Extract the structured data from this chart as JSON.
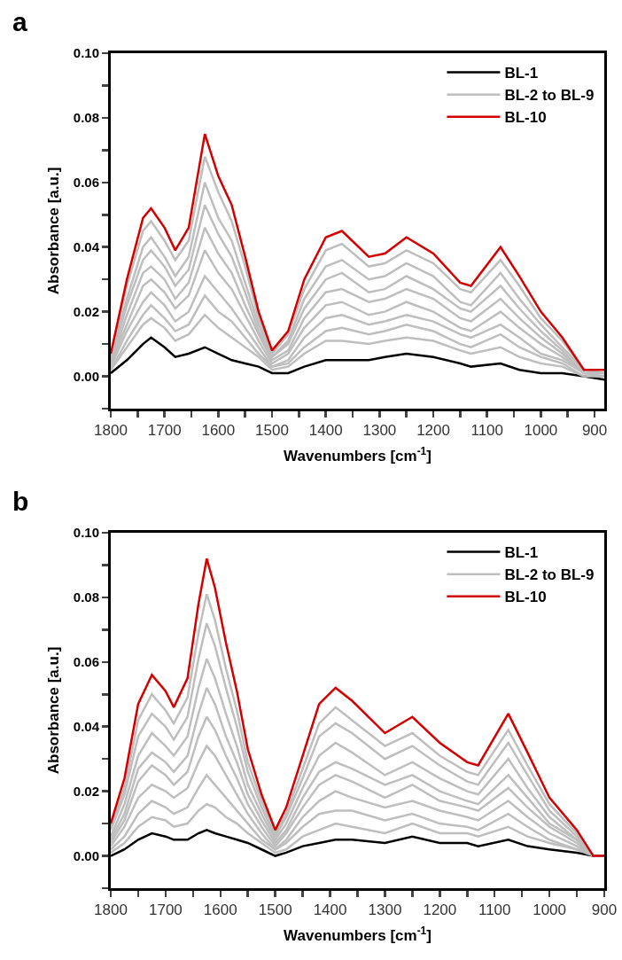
{
  "chart_data": [
    {
      "type": "line",
      "title": "a",
      "xlabel": "Wavenumbers [cm$^{-1}$]",
      "ylabel": "Absorbance [a.u.]",
      "legend": "top right",
      "grid": false,
      "x": [
        1800,
        1770,
        1740,
        1725,
        1700,
        1680,
        1655,
        1625,
        1600,
        1575,
        1550,
        1525,
        1500,
        1470,
        1440,
        1400,
        1370,
        1320,
        1290,
        1250,
        1200,
        1150,
        1130,
        1075,
        1040,
        1000,
        960,
        920,
        882
      ],
      "xlim": [
        1800,
        882
      ],
      "ylim": [
        -0.01,
        0.1
      ],
      "xticks": [
        1800,
        {
          "value": 1750,
          "label": null
        },
        1700,
        {
          "value": 1650,
          "label": null
        },
        1600,
        {
          "value": 1550,
          "label": null
        },
        1500,
        {
          "value": 1450,
          "label": null
        },
        1400,
        {
          "value": 1350,
          "label": null
        },
        1300,
        {
          "value": 1250,
          "label": null
        },
        1200,
        {
          "value": 1150,
          "label": null
        },
        1100,
        {
          "value": 1050,
          "label": null
        },
        1000,
        {
          "value": 950,
          "label": null
        },
        900
      ],
      "yticks": [
        {
          "value": -0.01,
          "label": null
        },
        {
          "value": 0,
          "label": "0.00"
        },
        {
          "value": 0.01,
          "label": null
        },
        {
          "value": 0.02,
          "label": "0.02"
        },
        {
          "value": 0.03,
          "label": null
        },
        {
          "value": 0.04,
          "label": "0.04"
        },
        {
          "value": 0.05,
          "label": null
        },
        {
          "value": 0.06,
          "label": "0.06"
        },
        {
          "value": 0.07,
          "label": null
        },
        {
          "value": 0.08,
          "label": "0.08"
        },
        {
          "value": 0.09,
          "label": null
        },
        {
          "value": 0.1,
          "label": "0.10"
        }
      ],
      "series": [
        {
          "name": "BL-1",
          "color": "#000000",
          "values": [
            0.001,
            0.005,
            0.01,
            0.012,
            0.009,
            0.006,
            0.007,
            0.009,
            0.007,
            0.005,
            0.004,
            0.003,
            0.001,
            0.001,
            0.003,
            0.005,
            0.005,
            0.005,
            0.006,
            0.007,
            0.006,
            0.004,
            0.003,
            0.004,
            0.002,
            0.001,
            0.001,
            0.0,
            -0.001
          ]
        },
        {
          "name": "BL-2 to BL-9",
          "color": "#bebebe",
          "values": [
            0.002,
            0.009,
            0.016,
            0.018,
            0.015,
            0.011,
            0.013,
            0.019,
            0.015,
            0.012,
            0.009,
            0.006,
            0.002,
            0.003,
            0.007,
            0.011,
            0.011,
            0.01,
            0.011,
            0.012,
            0.011,
            0.008,
            0.007,
            0.009,
            0.006,
            0.004,
            0.003,
            0.0,
            0.0
          ]
        },
        {
          "color": "#bebebe",
          "values": [
            0.002,
            0.011,
            0.019,
            0.022,
            0.018,
            0.014,
            0.016,
            0.025,
            0.02,
            0.017,
            0.012,
            0.007,
            0.003,
            0.004,
            0.009,
            0.014,
            0.015,
            0.013,
            0.014,
            0.016,
            0.014,
            0.01,
            0.009,
            0.013,
            0.009,
            0.006,
            0.004,
            0.0,
            0.0
          ]
        },
        {
          "color": "#bebebe",
          "values": [
            0.003,
            0.014,
            0.023,
            0.026,
            0.022,
            0.017,
            0.02,
            0.031,
            0.026,
            0.021,
            0.015,
            0.009,
            0.003,
            0.005,
            0.012,
            0.018,
            0.019,
            0.016,
            0.017,
            0.019,
            0.017,
            0.013,
            0.012,
            0.016,
            0.012,
            0.007,
            0.005,
            0.001,
            0.0
          ]
        },
        {
          "color": "#bebebe",
          "values": [
            0.004,
            0.016,
            0.028,
            0.03,
            0.026,
            0.021,
            0.025,
            0.039,
            0.032,
            0.027,
            0.019,
            0.011,
            0.004,
            0.007,
            0.015,
            0.022,
            0.023,
            0.019,
            0.02,
            0.023,
            0.02,
            0.015,
            0.014,
            0.02,
            0.015,
            0.01,
            0.006,
            0.001,
            0.0
          ]
        },
        {
          "color": "#bebebe",
          "values": [
            0.004,
            0.019,
            0.032,
            0.034,
            0.03,
            0.024,
            0.029,
            0.046,
            0.038,
            0.032,
            0.022,
            0.013,
            0.005,
            0.008,
            0.018,
            0.026,
            0.027,
            0.023,
            0.024,
            0.027,
            0.024,
            0.018,
            0.017,
            0.024,
            0.018,
            0.012,
            0.007,
            0.001,
            0.001
          ]
        },
        {
          "color": "#bebebe",
          "values": [
            0.005,
            0.022,
            0.036,
            0.039,
            0.034,
            0.028,
            0.033,
            0.053,
            0.044,
            0.037,
            0.026,
            0.014,
            0.006,
            0.01,
            0.021,
            0.03,
            0.032,
            0.026,
            0.027,
            0.031,
            0.027,
            0.021,
            0.02,
            0.028,
            0.021,
            0.014,
            0.008,
            0.001,
            0.001
          ]
        },
        {
          "color": "#bebebe",
          "values": [
            0.006,
            0.024,
            0.04,
            0.043,
            0.037,
            0.031,
            0.037,
            0.06,
            0.049,
            0.042,
            0.029,
            0.016,
            0.006,
            0.011,
            0.024,
            0.034,
            0.036,
            0.03,
            0.031,
            0.035,
            0.031,
            0.023,
            0.022,
            0.032,
            0.024,
            0.016,
            0.009,
            0.002,
            0.001
          ]
        },
        {
          "color": "#bebebe",
          "values": [
            0.006,
            0.028,
            0.045,
            0.048,
            0.042,
            0.036,
            0.042,
            0.068,
            0.057,
            0.048,
            0.034,
            0.018,
            0.007,
            0.013,
            0.027,
            0.039,
            0.041,
            0.034,
            0.035,
            0.039,
            0.035,
            0.027,
            0.026,
            0.036,
            0.028,
            0.018,
            0.011,
            0.002,
            0.001
          ]
        },
        {
          "name": "BL-10",
          "color": "#d40000",
          "values": [
            0.007,
            0.03,
            0.049,
            0.052,
            0.046,
            0.039,
            0.046,
            0.075,
            0.062,
            0.053,
            0.037,
            0.02,
            0.008,
            0.014,
            0.03,
            0.043,
            0.045,
            0.037,
            0.038,
            0.043,
            0.038,
            0.029,
            0.028,
            0.04,
            0.031,
            0.02,
            0.012,
            0.002,
            0.002
          ]
        }
      ]
    },
    {
      "type": "line",
      "title": "b",
      "xlabel": "Wavenumbers [cm$^{-1}$]",
      "ylabel": "Absorbance [a.u.]",
      "legend": "top right",
      "grid": false,
      "x": [
        1800,
        1775,
        1750,
        1725,
        1700,
        1685,
        1660,
        1640,
        1625,
        1610,
        1590,
        1570,
        1550,
        1525,
        1500,
        1480,
        1450,
        1420,
        1390,
        1360,
        1300,
        1250,
        1200,
        1150,
        1130,
        1075,
        1040,
        1000,
        950,
        920,
        900
      ],
      "xlim": [
        1800,
        900
      ],
      "ylim": [
        -0.01,
        0.1
      ],
      "xticks": [
        1800,
        {
          "value": 1750,
          "label": null
        },
        1700,
        {
          "value": 1650,
          "label": null
        },
        1600,
        {
          "value": 1550,
          "label": null
        },
        1500,
        {
          "value": 1450,
          "label": null
        },
        1400,
        {
          "value": 1350,
          "label": null
        },
        1300,
        {
          "value": 1250,
          "label": null
        },
        1200,
        {
          "value": 1150,
          "label": null
        },
        1100,
        {
          "value": 1050,
          "label": null
        },
        1000,
        {
          "value": 950,
          "label": null
        },
        900
      ],
      "yticks": [
        {
          "value": -0.01,
          "label": null
        },
        {
          "value": 0,
          "label": "0.00"
        },
        {
          "value": 0.01,
          "label": null
        },
        {
          "value": 0.02,
          "label": "0.02"
        },
        {
          "value": 0.03,
          "label": null
        },
        {
          "value": 0.04,
          "label": "0.04"
        },
        {
          "value": 0.05,
          "label": null
        },
        {
          "value": 0.06,
          "label": "0.06"
        },
        {
          "value": 0.07,
          "label": null
        },
        {
          "value": 0.08,
          "label": "0.08"
        },
        {
          "value": 0.09,
          "label": null
        },
        {
          "value": 0.1,
          "label": "0.10"
        }
      ],
      "series": [
        {
          "name": "BL-1",
          "color": "#000000",
          "values": [
            0.0,
            0.002,
            0.005,
            0.007,
            0.006,
            0.005,
            0.005,
            0.007,
            0.008,
            0.007,
            0.006,
            0.005,
            0.004,
            0.002,
            0.0,
            0.001,
            0.003,
            0.004,
            0.005,
            0.005,
            0.004,
            0.006,
            0.004,
            0.004,
            0.003,
            0.005,
            0.003,
            0.002,
            0.001,
            0.0,
            0.0
          ]
        },
        {
          "name": "BL-2 to BL-9",
          "color": "#bebebe",
          "values": [
            0.001,
            0.004,
            0.009,
            0.012,
            0.011,
            0.009,
            0.01,
            0.014,
            0.016,
            0.015,
            0.012,
            0.01,
            0.007,
            0.004,
            0.001,
            0.002,
            0.006,
            0.008,
            0.01,
            0.009,
            0.007,
            0.01,
            0.007,
            0.007,
            0.006,
            0.009,
            0.006,
            0.004,
            0.002,
            0.0,
            0.0
          ]
        },
        {
          "color": "#bebebe",
          "values": [
            0.002,
            0.006,
            0.013,
            0.017,
            0.015,
            0.013,
            0.015,
            0.021,
            0.025,
            0.022,
            0.018,
            0.014,
            0.01,
            0.005,
            0.002,
            0.004,
            0.009,
            0.013,
            0.014,
            0.014,
            0.011,
            0.013,
            0.01,
            0.009,
            0.008,
            0.013,
            0.009,
            0.005,
            0.002,
            0.0,
            0.0
          ]
        },
        {
          "color": "#bebebe",
          "values": [
            0.003,
            0.009,
            0.018,
            0.022,
            0.02,
            0.018,
            0.021,
            0.029,
            0.034,
            0.031,
            0.025,
            0.019,
            0.013,
            0.007,
            0.002,
            0.005,
            0.012,
            0.017,
            0.02,
            0.018,
            0.015,
            0.017,
            0.014,
            0.012,
            0.011,
            0.017,
            0.012,
            0.007,
            0.003,
            0.0,
            0.0
          ]
        },
        {
          "color": "#bebebe",
          "values": [
            0.004,
            0.011,
            0.023,
            0.028,
            0.025,
            0.022,
            0.026,
            0.037,
            0.043,
            0.039,
            0.031,
            0.024,
            0.016,
            0.009,
            0.003,
            0.007,
            0.015,
            0.022,
            0.025,
            0.023,
            0.018,
            0.022,
            0.017,
            0.015,
            0.014,
            0.021,
            0.015,
            0.009,
            0.004,
            0.0,
            0.0
          ]
        },
        {
          "color": "#bebebe",
          "values": [
            0.005,
            0.013,
            0.027,
            0.032,
            0.029,
            0.026,
            0.031,
            0.044,
            0.052,
            0.047,
            0.037,
            0.029,
            0.019,
            0.011,
            0.004,
            0.008,
            0.018,
            0.026,
            0.029,
            0.027,
            0.022,
            0.025,
            0.02,
            0.017,
            0.016,
            0.025,
            0.018,
            0.01,
            0.005,
            0.0,
            0.0
          ]
        },
        {
          "color": "#bebebe",
          "values": [
            0.006,
            0.016,
            0.031,
            0.038,
            0.034,
            0.031,
            0.037,
            0.052,
            0.061,
            0.055,
            0.044,
            0.034,
            0.022,
            0.013,
            0.005,
            0.01,
            0.021,
            0.031,
            0.035,
            0.032,
            0.025,
            0.029,
            0.024,
            0.02,
            0.019,
            0.03,
            0.021,
            0.012,
            0.005,
            0.0,
            0.0
          ]
        },
        {
          "color": "#bebebe",
          "values": [
            0.008,
            0.019,
            0.037,
            0.044,
            0.04,
            0.036,
            0.043,
            0.061,
            0.072,
            0.065,
            0.052,
            0.04,
            0.026,
            0.015,
            0.006,
            0.012,
            0.024,
            0.037,
            0.041,
            0.038,
            0.03,
            0.034,
            0.028,
            0.023,
            0.022,
            0.035,
            0.025,
            0.014,
            0.006,
            0.0,
            0.0
          ]
        },
        {
          "color": "#bebebe",
          "values": [
            0.009,
            0.021,
            0.042,
            0.05,
            0.045,
            0.041,
            0.049,
            0.069,
            0.081,
            0.073,
            0.058,
            0.045,
            0.029,
            0.017,
            0.007,
            0.013,
            0.027,
            0.041,
            0.046,
            0.042,
            0.034,
            0.038,
            0.031,
            0.026,
            0.025,
            0.039,
            0.028,
            0.016,
            0.007,
            0.0,
            0.0
          ]
        },
        {
          "name": "BL-10",
          "color": "#d40000",
          "values": [
            0.01,
            0.024,
            0.047,
            0.056,
            0.051,
            0.046,
            0.055,
            0.078,
            0.092,
            0.083,
            0.066,
            0.051,
            0.033,
            0.019,
            0.008,
            0.015,
            0.031,
            0.047,
            0.052,
            0.048,
            0.038,
            0.043,
            0.035,
            0.029,
            0.028,
            0.044,
            0.032,
            0.018,
            0.008,
            0.0,
            0.0
          ]
        }
      ]
    }
  ]
}
